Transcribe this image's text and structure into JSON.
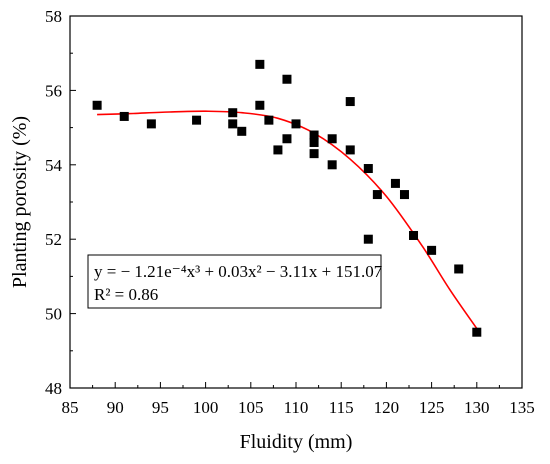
{
  "chart_data": {
    "type": "scatter",
    "xlabel": "Fluidity (mm)",
    "ylabel": "Planting porosity (%)",
    "xlim": [
      85,
      135
    ],
    "ylim": [
      48,
      58
    ],
    "x_ticks": [
      85,
      90,
      95,
      100,
      105,
      110,
      115,
      120,
      125,
      130,
      135
    ],
    "y_ticks": [
      48,
      50,
      52,
      54,
      56,
      58
    ],
    "grid": false,
    "series": [
      {
        "marker": "square",
        "color": "#000000",
        "points": [
          [
            88,
            55.6
          ],
          [
            91,
            55.3
          ],
          [
            94,
            55.1
          ],
          [
            99,
            55.2
          ],
          [
            103,
            55.4
          ],
          [
            103,
            55.1
          ],
          [
            104,
            54.9
          ],
          [
            106,
            56.7
          ],
          [
            106,
            55.6
          ],
          [
            107,
            55.2
          ],
          [
            108,
            54.4
          ],
          [
            109,
            56.3
          ],
          [
            109,
            54.7
          ],
          [
            110,
            55.1
          ],
          [
            112,
            54.8
          ],
          [
            112,
            54.6
          ],
          [
            112,
            54.3
          ],
          [
            114,
            54.7
          ],
          [
            114,
            54.0
          ],
          [
            116,
            55.7
          ],
          [
            116,
            54.4
          ],
          [
            118,
            53.9
          ],
          [
            118,
            52.0
          ],
          [
            119,
            53.2
          ],
          [
            121,
            53.5
          ],
          [
            122,
            53.2
          ],
          [
            123,
            52.1
          ],
          [
            125,
            51.7
          ],
          [
            128,
            51.2
          ],
          [
            130,
            49.5
          ]
        ]
      }
    ],
    "fit": {
      "color": "#ff0000",
      "x_range": [
        88,
        130
      ],
      "samples": [
        [
          88,
          55.35
        ],
        [
          92,
          55.38
        ],
        [
          96,
          55.42
        ],
        [
          100,
          55.44
        ],
        [
          104,
          55.4
        ],
        [
          108,
          55.25
        ],
        [
          112,
          54.85
        ],
        [
          116,
          54.15
        ],
        [
          120,
          53.15
        ],
        [
          124,
          51.8
        ],
        [
          127,
          50.65
        ],
        [
          130,
          49.6
        ]
      ]
    },
    "annotation": {
      "equation": "y = − 1.21e⁻⁴x³ + 0.03x² − 3.11x + 151.07",
      "r2": "R² = 0.86"
    }
  }
}
